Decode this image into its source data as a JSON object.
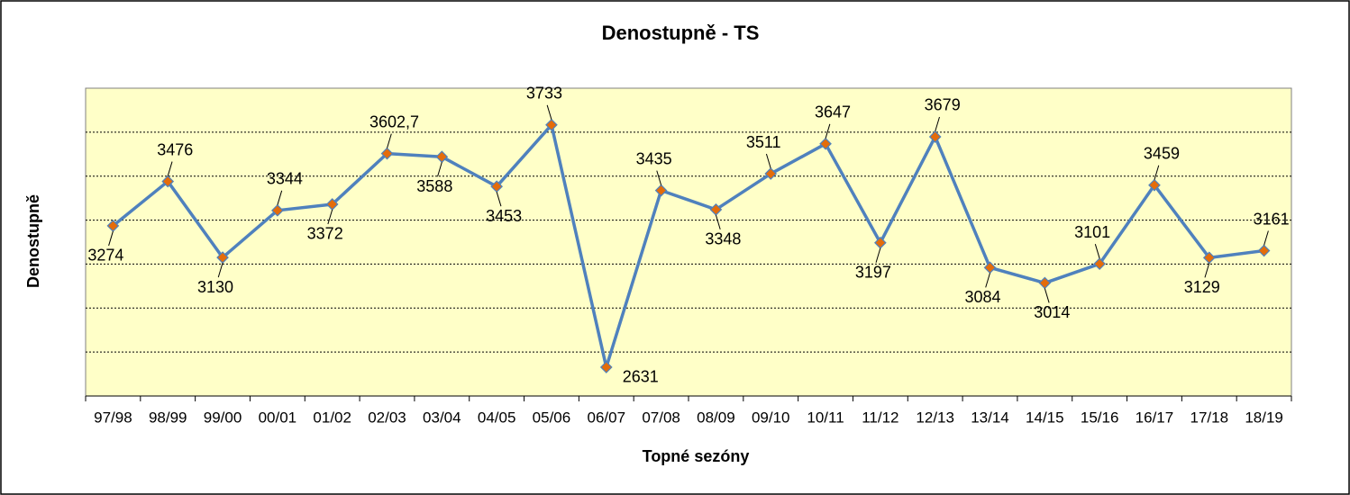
{
  "chart_data": {
    "type": "line",
    "title": "Denostupně - TS",
    "x_label": "Topné sezóny",
    "y_label": "Denostupně",
    "categories": [
      "97/98",
      "98/99",
      "99/00",
      "00/01",
      "01/02",
      "02/03",
      "03/04",
      "04/05",
      "05/06",
      "06/07",
      "07/08",
      "08/09",
      "09/10",
      "10/11",
      "11/12",
      "12/13",
      "13/14",
      "14/15",
      "15/16",
      "16/17",
      "17/18",
      "18/19"
    ],
    "series": [
      {
        "name": "Denostupně",
        "color": "#4f81bd",
        "marker_color": "#e46c0a",
        "values": [
          3274,
          3476,
          3130,
          3344,
          3372,
          3602.7,
          3588,
          3453,
          3733,
          2631,
          3435,
          3348,
          3511,
          3647,
          3197,
          3679,
          3084,
          3014,
          3101,
          3459,
          3129,
          3161
        ],
        "value_labels": [
          "3274",
          "3476",
          "3130",
          "3344",
          "3372",
          "3602,7",
          "3588",
          "3453",
          "3733",
          "2631",
          "3435",
          "3348",
          "3511",
          "3647",
          "3197",
          "3679",
          "3084",
          "3014",
          "3101",
          "3459",
          "3129",
          "3161"
        ]
      }
    ],
    "ylim": [
      2500,
      3900
    ],
    "yticks": [
      2700,
      2900,
      3100,
      3300,
      3500,
      3700
    ],
    "grid": true,
    "background": "#ffffc8"
  }
}
